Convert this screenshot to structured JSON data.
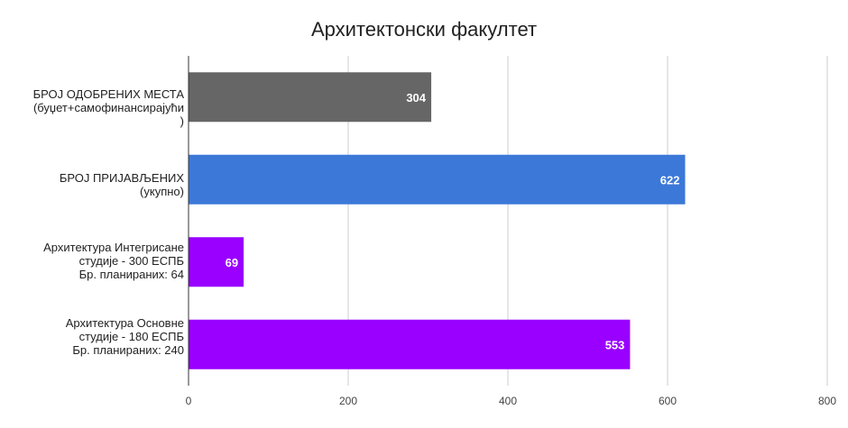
{
  "chart_data": {
    "type": "bar",
    "orientation": "horizontal",
    "title": "Архитектонски факултет",
    "categories": [
      "БРОЈ ОДОБРЕНИХ МЕСТА\n(буџет+самофинансирајући\n)",
      "БРОЈ ПРИЈАВЉЕНИХ\n(укупно)",
      "Архитектура Интегрисане\nстудије - 300 ЕСПБ\nБр. планираних: 64",
      "Архитектура Основне\nстудије - 180 ЕСПБ\nБр. планираних: 240"
    ],
    "values": [
      304,
      622,
      69,
      553
    ],
    "data_labels": [
      "304",
      "622",
      "69",
      "553"
    ],
    "colors": [
      "#666666",
      "#3c78d8",
      "#9900ff",
      "#9900ff"
    ],
    "xlim": [
      0,
      800
    ],
    "x_ticks": [
      "0",
      "200",
      "400",
      "600",
      "800"
    ],
    "xlabel": "",
    "ylabel": "",
    "grid": true,
    "legend": "none"
  }
}
